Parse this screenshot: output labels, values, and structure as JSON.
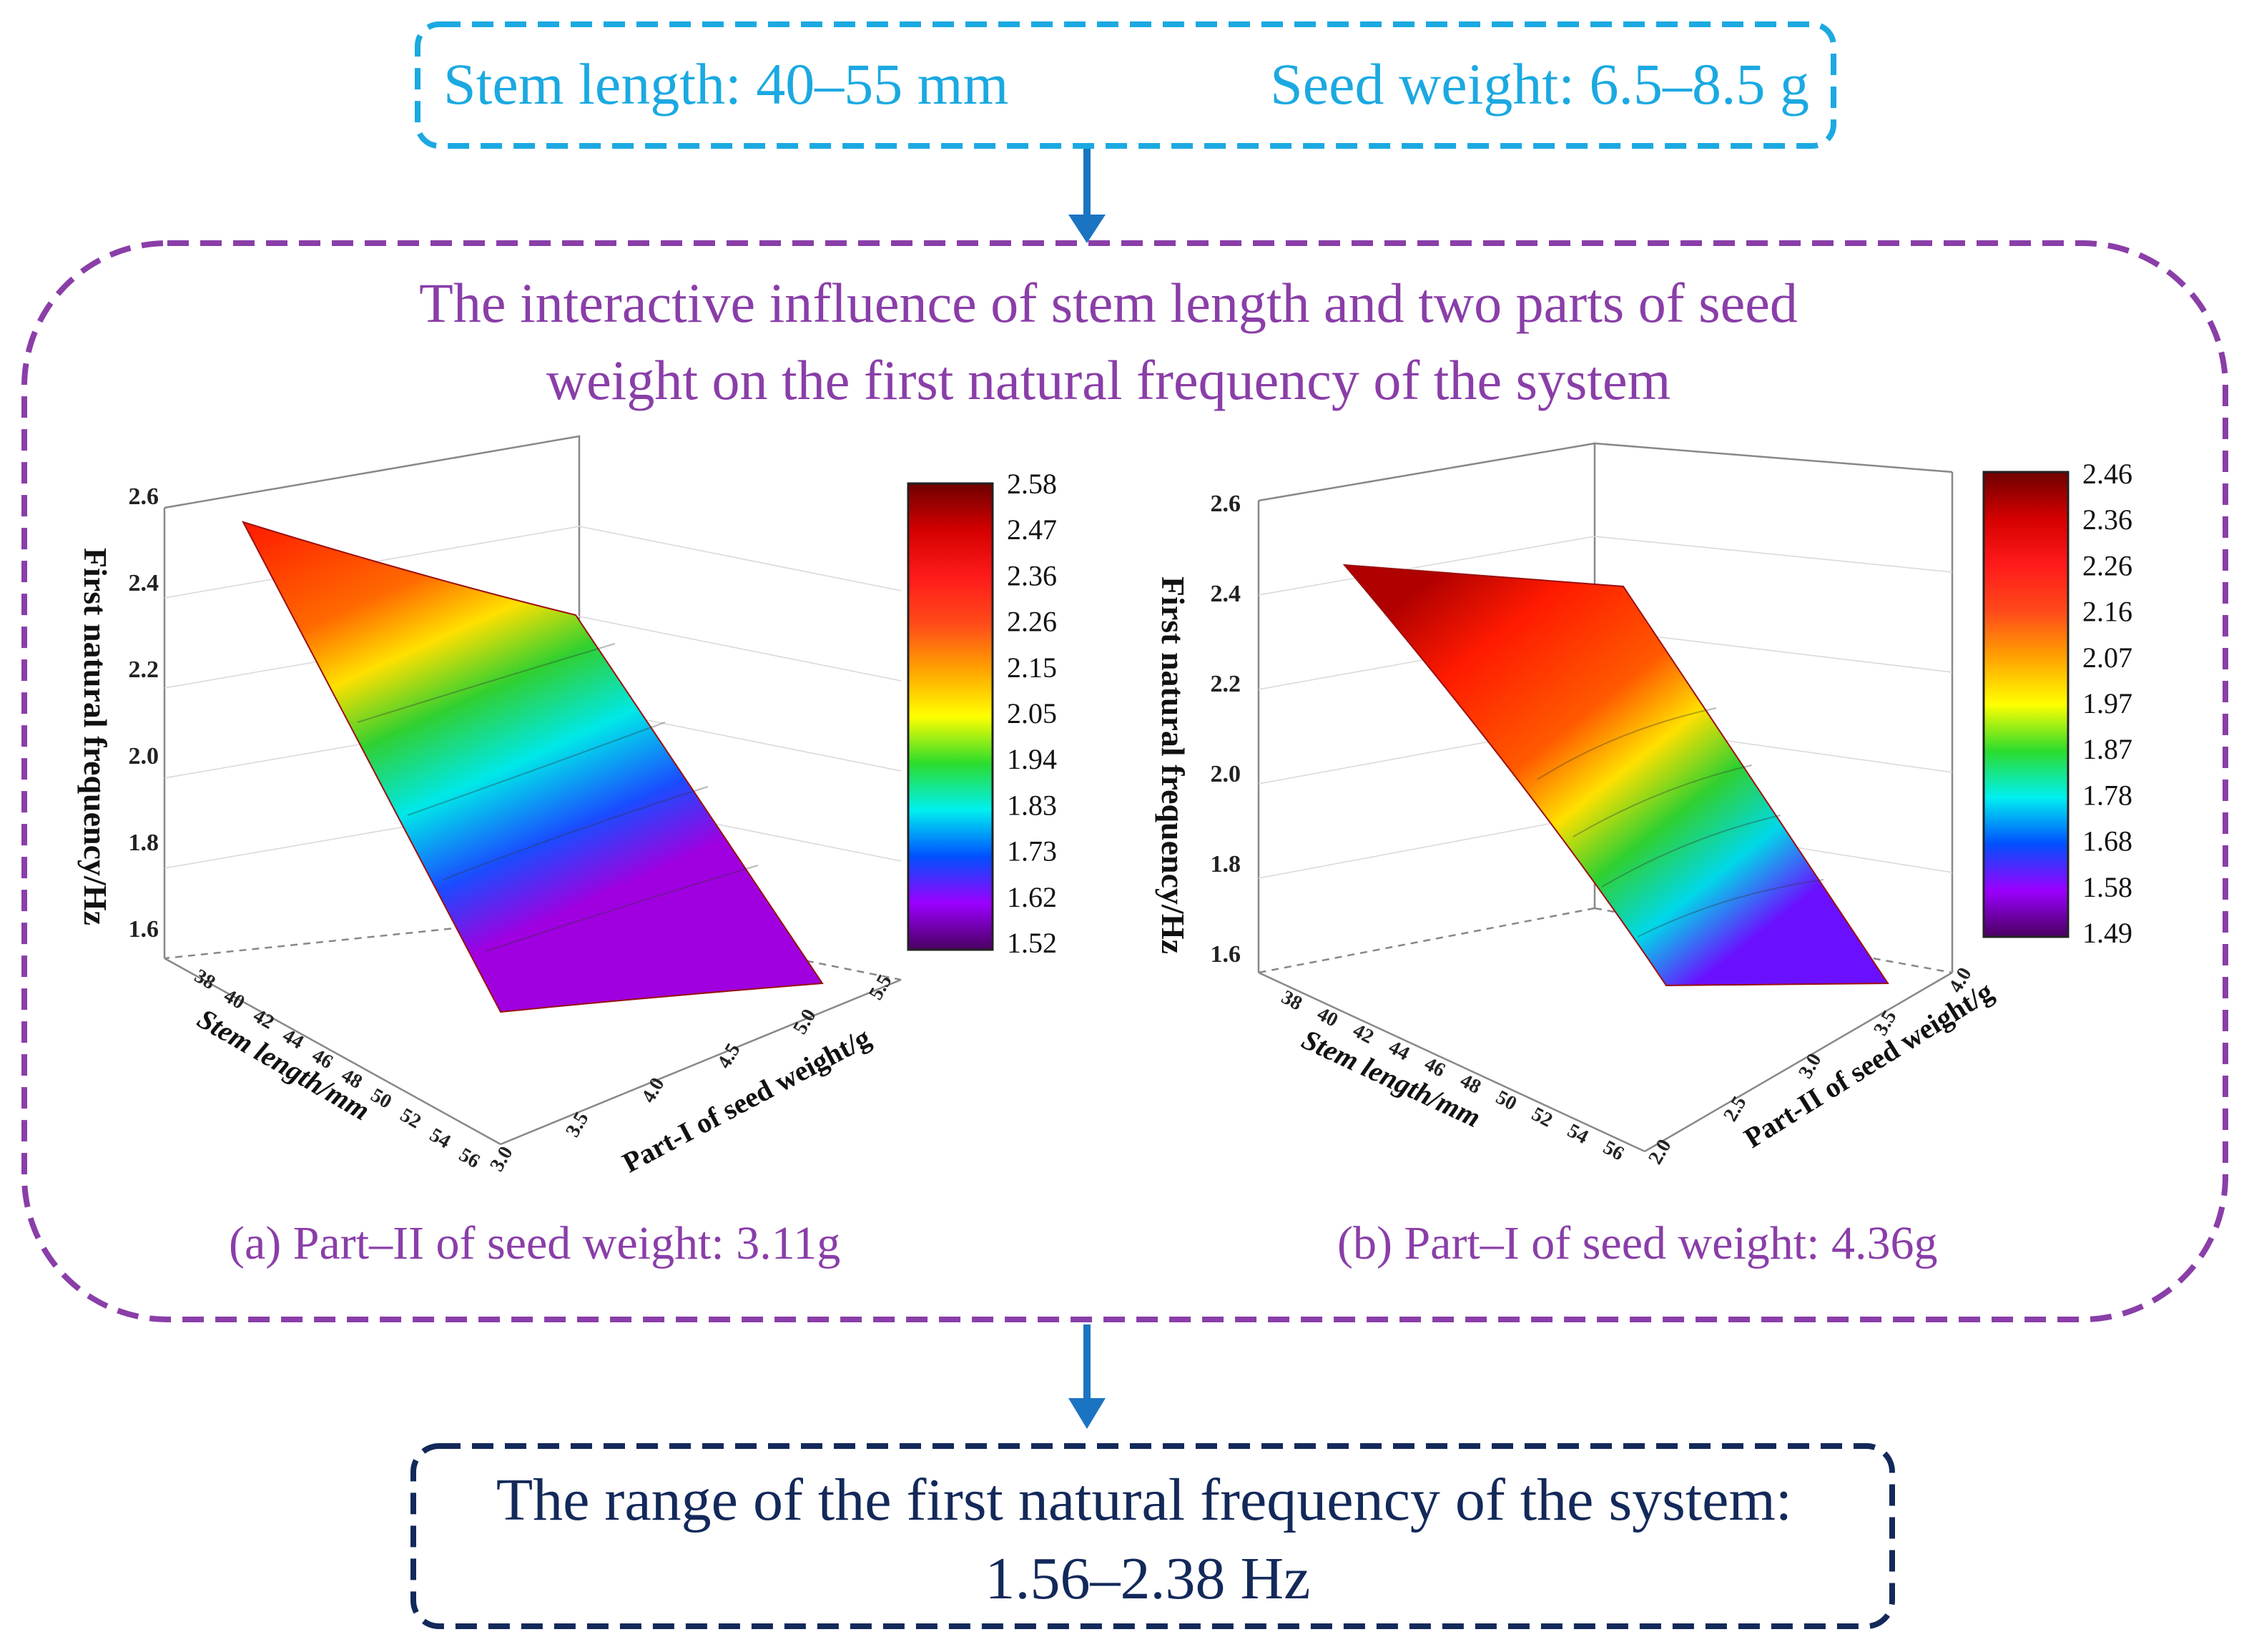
{
  "top_box": {
    "stem_length": "Stem length: 40–55 mm",
    "seed_weight": "Seed weight: 6.5–8.5 g",
    "border_color": "#1ba9e1"
  },
  "middle_box": {
    "title_line1": "The interactive influence of stem length and two parts of seed",
    "title_line2": "weight on the first natural frequency of the system",
    "border_color": "#8a3ea8"
  },
  "plot_a": {
    "caption": "(a) Part–II of seed weight: 3.11g",
    "z_label": "First natural frequency/Hz",
    "x_label": "Stem length/mm",
    "y_label": "Part-I of seed weight/g",
    "z_ticks": [
      "1.6",
      "1.8",
      "2.0",
      "2.2",
      "2.4",
      "2.6"
    ],
    "x_ticks": [
      "38",
      "40",
      "42",
      "44",
      "46",
      "48",
      "50",
      "52",
      "54",
      "56"
    ],
    "y_ticks": [
      "3.0",
      "3.5",
      "4.0",
      "4.5",
      "5.0",
      "5.5"
    ],
    "colorbar": [
      "2.58",
      "2.47",
      "2.36",
      "2.26",
      "2.15",
      "2.05",
      "1.94",
      "1.83",
      "1.73",
      "1.62",
      "1.52"
    ]
  },
  "plot_b": {
    "caption": "(b) Part–I of seed weight: 4.36g",
    "z_label": "First natural frequency/Hz",
    "x_label": "Stem length/mm",
    "y_label": "Part-II of seed weight/g",
    "z_ticks": [
      "1.6",
      "1.8",
      "2.0",
      "2.2",
      "2.4",
      "2.6"
    ],
    "x_ticks": [
      "38",
      "40",
      "42",
      "44",
      "46",
      "48",
      "50",
      "52",
      "54",
      "56"
    ],
    "y_ticks": [
      "2.0",
      "2.5",
      "3.0",
      "3.5",
      "4.0"
    ],
    "colorbar": [
      "2.46",
      "2.36",
      "2.26",
      "2.16",
      "2.07",
      "1.97",
      "1.87",
      "1.78",
      "1.68",
      "1.58",
      "1.49"
    ]
  },
  "bottom_box": {
    "line1": "The range of the first natural frequency of the system:",
    "line2": "1.56–2.38 Hz",
    "border_color": "#13295a"
  },
  "arrow_color": "#1b74c2"
}
